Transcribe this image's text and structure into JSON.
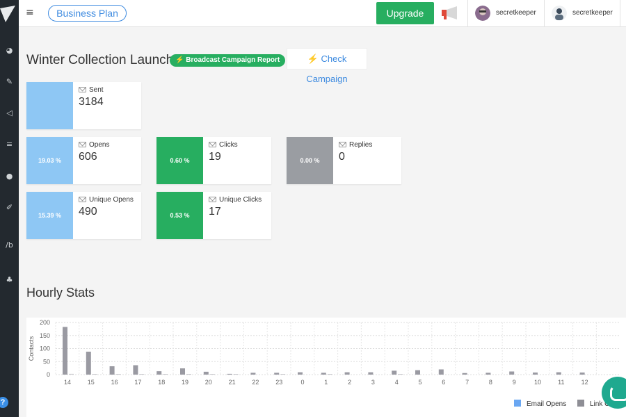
{
  "topbar": {
    "plan_label": "Business Plan",
    "upgrade_label": "Upgrade",
    "users": [
      {
        "name": "secretkeeper"
      },
      {
        "name": "secretkeeper"
      }
    ]
  },
  "campaign": {
    "title": "Winter Collection Launch",
    "report_badge": "⚡ Broadcast Campaign Report",
    "check_label": "⚡ Check Campaign"
  },
  "stats": {
    "sent": {
      "label": "Sent",
      "value": "3184"
    },
    "opens": {
      "label": "Opens",
      "value": "606",
      "rate": "19.03 %"
    },
    "clicks": {
      "label": "Clicks",
      "value": "19",
      "rate": "0.60 %"
    },
    "replies": {
      "label": "Replies",
      "value": "0",
      "rate": "0.00 %"
    },
    "unique_opens": {
      "label": "Unique Opens",
      "value": "490",
      "rate": "15.39 %"
    },
    "unique_clicks": {
      "label": "Unique Clicks",
      "value": "17",
      "rate": "0.53 %"
    }
  },
  "colors": {
    "open_blue": "#8ec7f4",
    "click_green": "#27ae60",
    "reply_gray": "#9a9da2",
    "series_opens": "#6aa7f2",
    "series_links": "#8e8e95"
  },
  "hourly": {
    "title": "Hourly Stats"
  },
  "chart_data": {
    "type": "bar",
    "ylabel": "Contacts",
    "ylim": [
      0,
      200
    ],
    "yticks": [
      "200",
      "150",
      "100",
      "50",
      "0"
    ],
    "categories": [
      "14",
      "15",
      "16",
      "17",
      "18",
      "19",
      "20",
      "21",
      "22",
      "23",
      "0",
      "1",
      "2",
      "3",
      "4",
      "5",
      "6",
      "7",
      "8",
      "9",
      "10",
      "11",
      "12"
    ],
    "series": [
      {
        "name": "Email Opens",
        "values": [
          183,
          88,
          32,
          36,
          13,
          24,
          11,
          3,
          7,
          7,
          9,
          7,
          9,
          9,
          15,
          17,
          20,
          6,
          7,
          12,
          8,
          9,
          8
        ]
      },
      {
        "name": "Link Clicks",
        "values": [
          3,
          2,
          1,
          1,
          1,
          1,
          1,
          1,
          0,
          1,
          0,
          1,
          0,
          0,
          1,
          0,
          0,
          0,
          0,
          0,
          0,
          0,
          0
        ]
      }
    ],
    "legend": [
      "Email Opens",
      "Link C"
    ],
    "grid": true
  }
}
